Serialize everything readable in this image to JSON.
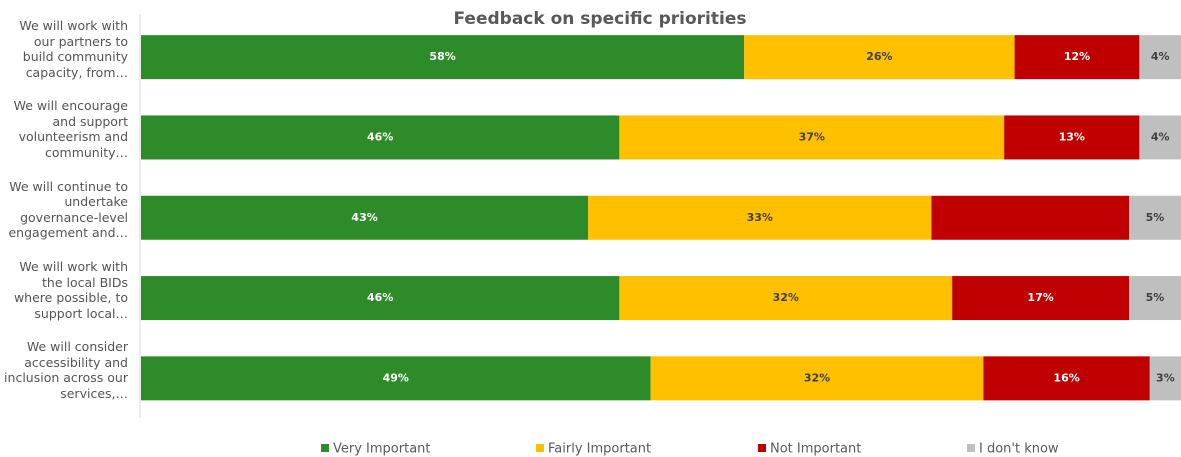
{
  "chart_data": {
    "type": "stacked_barh",
    "title": "Feedback on specific priorities",
    "categories": [
      "We will work with our partners to build community capacity, from…",
      "We will encourage and support volunteerism and community…",
      "We will continue to undertake governance-level engagement and…",
      "We will work with the local BIDs where possible, to support local…",
      "We will consider accessibility and inclusion across our services,…"
    ],
    "series": [
      {
        "name": "Very Important",
        "color": "#2e8b2a",
        "values": [
          58,
          46,
          43,
          46,
          49
        ],
        "value_labels": [
          "58%",
          "46%",
          "43%",
          "46%",
          "49%"
        ]
      },
      {
        "name": "Fairly Important",
        "color": "#ffc000",
        "values": [
          26,
          37,
          33,
          32,
          32
        ],
        "value_labels": [
          "26%",
          "37%",
          "33%",
          "32%",
          "32%"
        ]
      },
      {
        "name": "Not Important",
        "color": "#c00000",
        "values": [
          12,
          13,
          19,
          17,
          16
        ],
        "value_labels": [
          "12%",
          "13%",
          null,
          "17%",
          "16%"
        ]
      },
      {
        "name": "I don't know",
        "color": "#bfbfbf",
        "values": [
          4,
          4,
          5,
          5,
          3
        ],
        "value_labels": [
          "4%",
          "4%",
          "5%",
          "5%",
          "3%"
        ]
      }
    ],
    "xlim": [
      0,
      100
    ],
    "legend": "bottom"
  }
}
